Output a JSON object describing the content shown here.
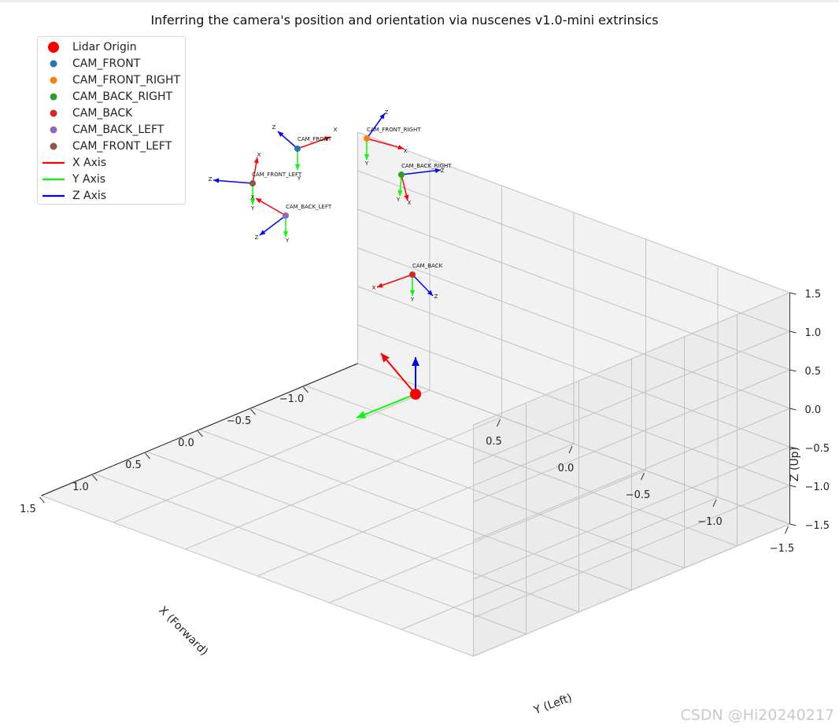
{
  "chart_data": {
    "type": "scatter",
    "title": "Inferring the camera's position and orientation via nuscenes v1.0-mini extrinsics",
    "xlabel": "X (Forward)",
    "ylabel": "Y (Left)",
    "zlabel": "Z (Up)",
    "xlim": [
      -1.5,
      1.5
    ],
    "ylim": [
      -1.5,
      1.5
    ],
    "zlim": [
      -1.5,
      1.5
    ],
    "x_ticks": [
      "1.5",
      "1.0",
      "0.5",
      "0.0",
      "−0.5",
      "−1.0"
    ],
    "y_ticks": [
      "−1.5",
      "−1.0",
      "−0.5",
      "0.0",
      "0.5"
    ],
    "z_ticks": [
      "1.5",
      "1.0",
      "0.5",
      "0.0",
      "−0.5",
      "−1.0",
      "−1.5"
    ],
    "grid": true,
    "legend_position": "upper-left",
    "legend": [
      {
        "label": "Lidar Origin",
        "kind": "marker",
        "color": "#ff0000"
      },
      {
        "label": "CAM_FRONT",
        "kind": "marker",
        "color": "#1f77b4"
      },
      {
        "label": "CAM_FRONT_RIGHT",
        "kind": "marker",
        "color": "#ff7f0e"
      },
      {
        "label": "CAM_BACK_RIGHT",
        "kind": "marker",
        "color": "#2ca02c"
      },
      {
        "label": "CAM_BACK",
        "kind": "marker",
        "color": "#d62728"
      },
      {
        "label": "CAM_BACK_LEFT",
        "kind": "marker",
        "color": "#9467bd"
      },
      {
        "label": "CAM_FRONT_LEFT",
        "kind": "marker",
        "color": "#8c564b"
      },
      {
        "label": "X Axis",
        "kind": "line",
        "color": "#ff0000"
      },
      {
        "label": "Y Axis",
        "kind": "line",
        "color": "#00ff00"
      },
      {
        "label": "Z Axis",
        "kind": "line",
        "color": "#0000ff"
      }
    ],
    "axis_colors": {
      "x": "#ff0000",
      "y": "#00ff00",
      "z": "#0000ff"
    },
    "lidar_origin": {
      "label": "Lidar Origin",
      "x": 0.0,
      "y": 0.0,
      "z": 0.0,
      "color": "#ff0000"
    },
    "cameras": [
      {
        "name": "CAM_FRONT",
        "color": "#1f77b4",
        "x": 1.0,
        "y": 0.0,
        "z": 1.5
      },
      {
        "name": "CAM_FRONT_RIGHT",
        "color": "#ff7f0e",
        "x": 0.5,
        "y": -0.5,
        "z": 1.5
      },
      {
        "name": "CAM_BACK_RIGHT",
        "color": "#2ca02c",
        "x": 0.0,
        "y": -0.5,
        "z": 1.5
      },
      {
        "name": "CAM_BACK",
        "color": "#d62728",
        "x": -1.0,
        "y": 0.0,
        "z": 1.5
      },
      {
        "name": "CAM_BACK_LEFT",
        "color": "#9467bd",
        "x": 0.0,
        "y": 0.5,
        "z": 1.5
      },
      {
        "name": "CAM_FRONT_LEFT",
        "color": "#8c564b",
        "x": 0.5,
        "y": 0.5,
        "z": 1.5
      }
    ],
    "axis_letters": [
      "X",
      "Y",
      "Z"
    ]
  },
  "watermark": "CSDN @Hi20240217"
}
